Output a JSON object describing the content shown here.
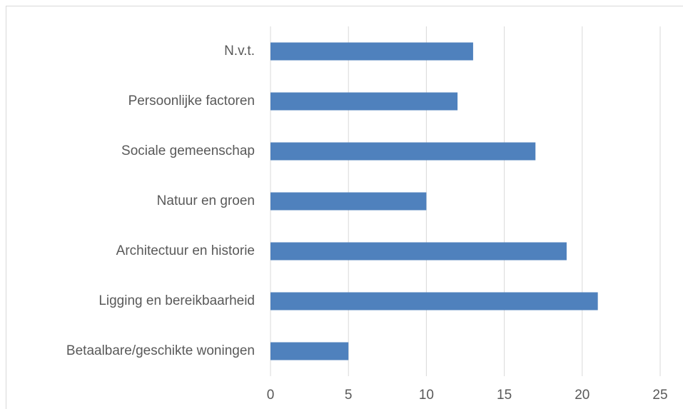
{
  "chart_data": {
    "type": "bar",
    "orientation": "horizontal",
    "categories": [
      "N.v.t.",
      "Persoonlijke factoren",
      "Sociale gemeenschap",
      "Natuur en groen",
      "Architectuur en historie",
      "Ligging en bereikbaarheid",
      "Betaalbare/geschikte woningen"
    ],
    "values": [
      13,
      12,
      17,
      10,
      19,
      21,
      5
    ],
    "color": "#4f81bd",
    "xlim": [
      0,
      25
    ],
    "xticks": [
      0,
      5,
      10,
      15,
      20,
      25
    ],
    "grid": true
  }
}
